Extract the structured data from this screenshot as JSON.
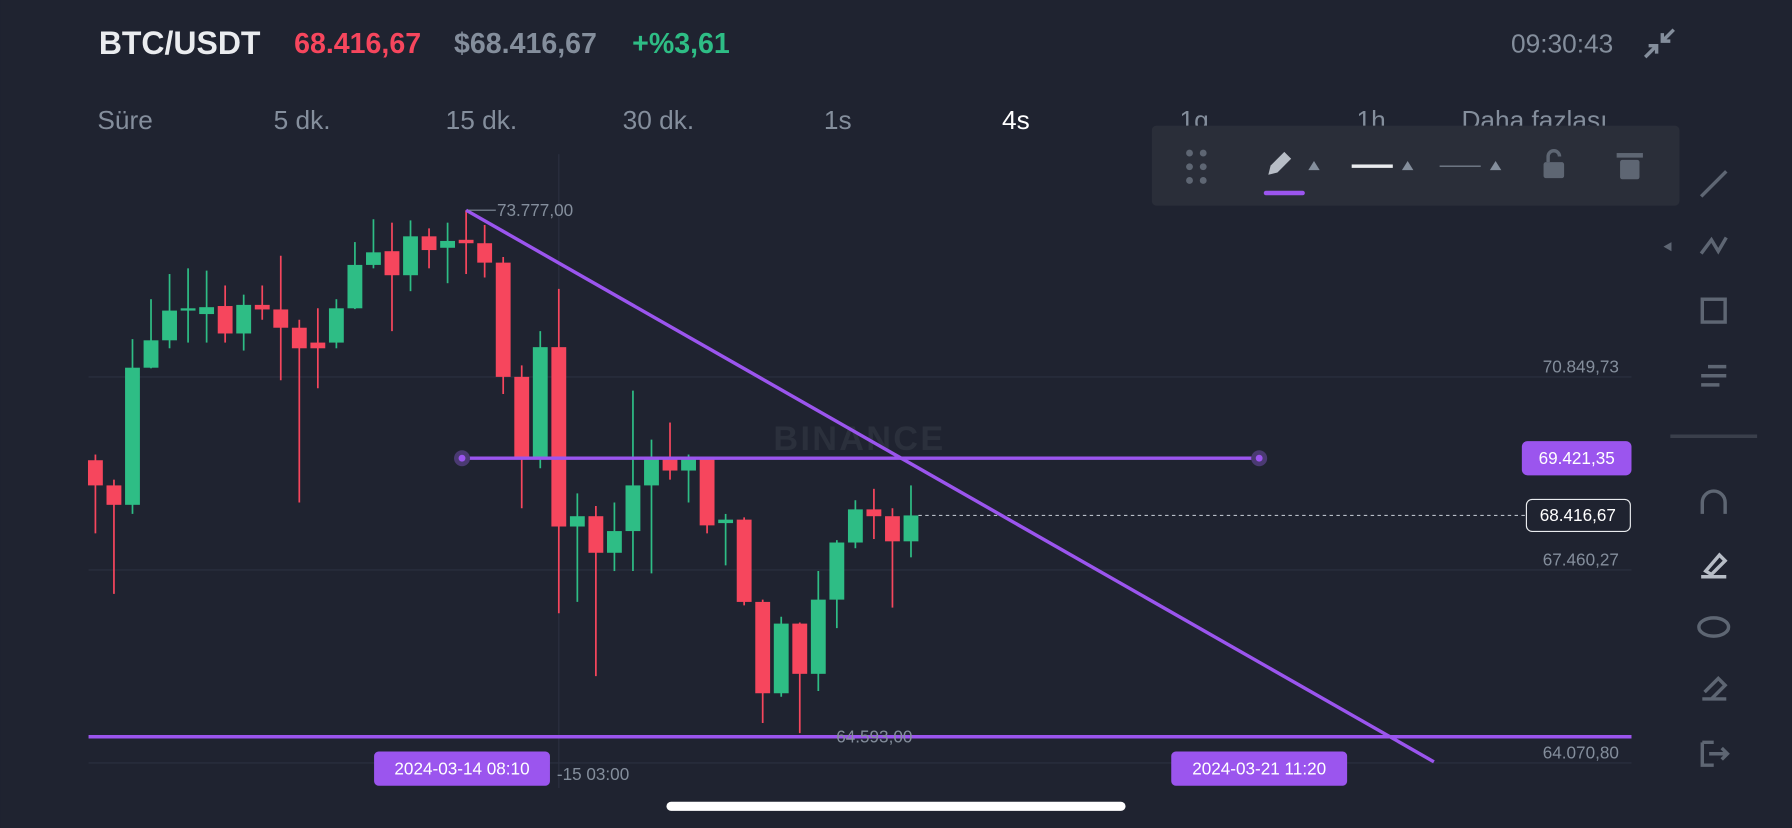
{
  "header": {
    "symbol": "BTC/USDT",
    "price": "68.416,67",
    "usd_price": "$68.416,67",
    "change": "+%3,61",
    "time": "09:30:43"
  },
  "tabs": [
    "Süre",
    "5 dk.",
    "15 dk.",
    "30 dk.",
    "1s",
    "4s",
    "1g",
    "1h",
    "Daha fazlası"
  ],
  "active_tab": 5,
  "watermark": "BINANCE",
  "chart_data": {
    "type": "candlestick",
    "categories": [
      null,
      null,
      null,
      null,
      null,
      null,
      null,
      null,
      null,
      null,
      null,
      null,
      null,
      null,
      null,
      null,
      null,
      null,
      null,
      null,
      null,
      null,
      null,
      null,
      null,
      "-15 03:00",
      null,
      null,
      null,
      null,
      null,
      null,
      null,
      null,
      null,
      null,
      null,
      null,
      null,
      null,
      null,
      null,
      null,
      null,
      null
    ],
    "open": [
      69386,
      68944,
      68603,
      71011,
      71492,
      72014,
      71953,
      72094,
      71612,
      72114,
      72034,
      71713,
      71452,
      71452,
      72054,
      72816,
      73057,
      72635,
      73318,
      73117,
      73257,
      73197,
      72856,
      70850,
      69406,
      71372,
      68222,
      68403,
      67761,
      68142,
      68944,
      69446,
      69205,
      69406,
      68282,
      68343,
      66898,
      65294,
      66517,
      65635,
      66938,
      67941,
      68523,
      68403,
      67962
    ],
    "high": [
      69486,
      69045,
      71512,
      72214,
      72656,
      72756,
      72716,
      72455,
      72294,
      72455,
      72977,
      71853,
      72054,
      72214,
      73217,
      73618,
      73558,
      73598,
      73458,
      73558,
      73777,
      73518,
      72956,
      71051,
      71653,
      72395,
      68804,
      68583,
      68644,
      70609,
      69747,
      70048,
      69486,
      69446,
      68443,
      68383,
      66938,
      66638,
      66537,
      67440,
      67982,
      68684,
      68884,
      68543,
      68944
    ],
    "low": [
      68102,
      67039,
      68443,
      71000,
      71352,
      71452,
      71452,
      71452,
      71312,
      71853,
      70790,
      68644,
      70650,
      71352,
      72040,
      72756,
      71653,
      72355,
      72756,
      72495,
      72656,
      72595,
      70549,
      68543,
      69245,
      66698,
      66898,
      65594,
      67440,
      67440,
      67400,
      69045,
      68644,
      68102,
      67540,
      66838,
      64772,
      65233,
      64593,
      65334,
      66437,
      67841,
      68002,
      66798,
      67681
    ],
    "close": [
      68944,
      68603,
      71011,
      71492,
      72014,
      72054,
      72074,
      71612,
      72114,
      72034,
      71713,
      71352,
      71352,
      72054,
      72816,
      73037,
      72635,
      73318,
      73077,
      73237,
      73197,
      72856,
      70850,
      69406,
      71372,
      68222,
      68403,
      67761,
      68142,
      68944,
      69446,
      69205,
      69406,
      68242,
      68343,
      66898,
      65294,
      66517,
      65635,
      66938,
      67941,
      68523,
      68403,
      67962,
      68416.67
    ],
    "up_color": "#2ebd85",
    "down_color": "#f6465d",
    "drawing_color": "#9b55ee",
    "ylim": [
      63629.6,
      74760.7
    ],
    "yticks": [
      {
        "value": 70849.73,
        "label": "70.849,73"
      },
      {
        "value": 67460.27,
        "label": "67.460,27"
      },
      {
        "value": 64070.8,
        "label": "64.070,80"
      }
    ],
    "grid": true,
    "last_price": {
      "value": 68416.67,
      "label": "68.416,67"
    },
    "hlines": [
      {
        "value": 69421.35,
        "label": "69.421,35"
      },
      {
        "value": 64530
      }
    ],
    "trendline": [
      73777,
      64090
    ],
    "annotations": [
      {
        "value": 73777,
        "label": "73.777,00"
      },
      {
        "value": 64593,
        "label": "64.593,00"
      }
    ],
    "date_labels": [
      "2024-03-14 08:10",
      "2024-03-21 11:20"
    ]
  }
}
